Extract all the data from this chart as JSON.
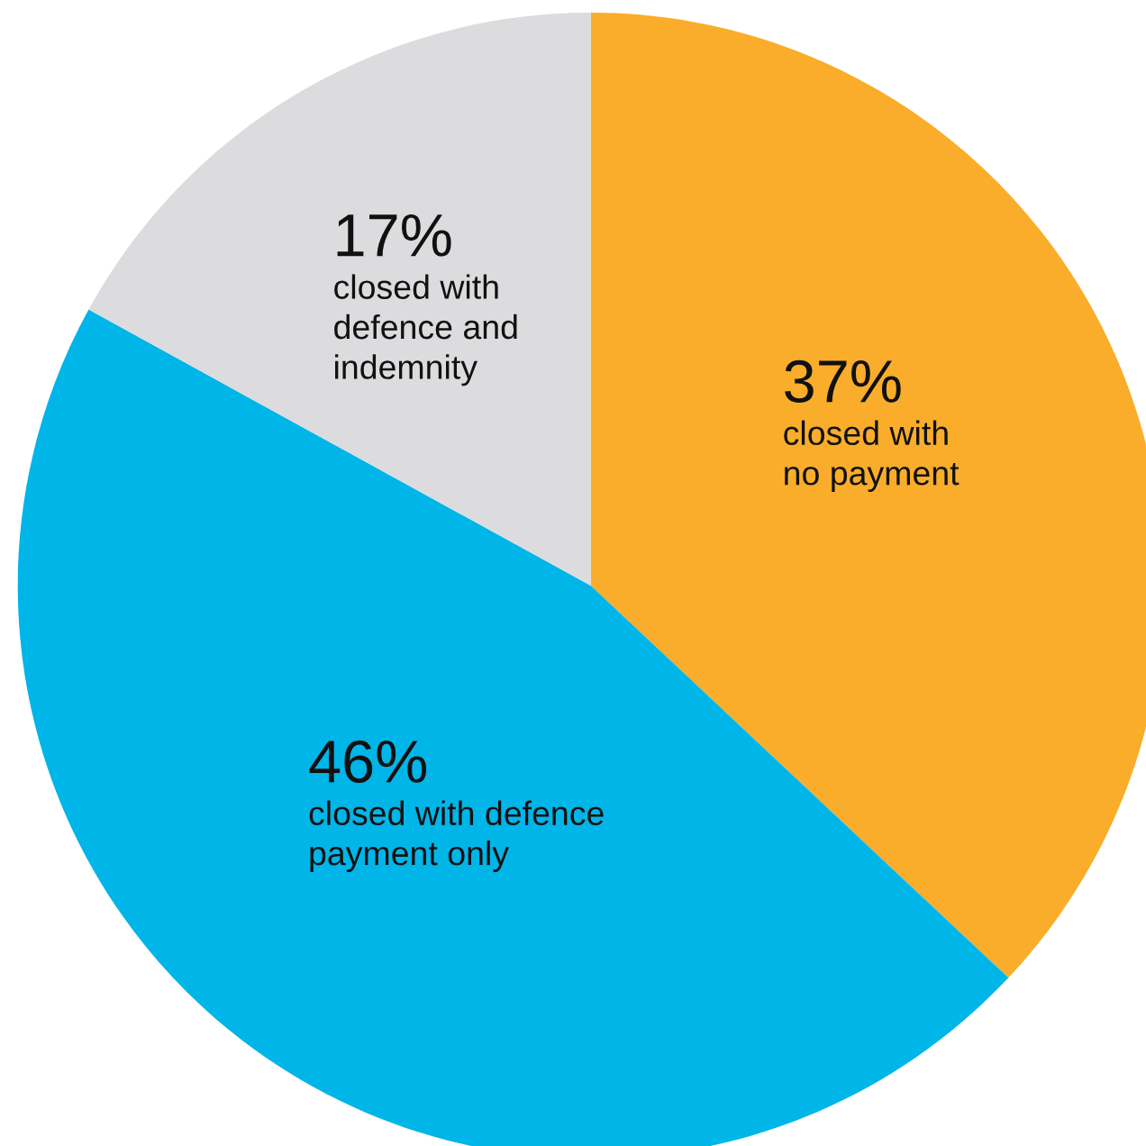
{
  "chart_data": {
    "type": "pie",
    "categories": [
      "closed with\nno payment",
      "closed with defence\npayment only",
      "closed with\ndefence and\nindemnity"
    ],
    "values": [
      37,
      46,
      17
    ],
    "value_labels": [
      "37%",
      "46%",
      "17%"
    ],
    "colors": [
      "#f9ad2a",
      "#00b5e8",
      "#dcdcde"
    ]
  }
}
